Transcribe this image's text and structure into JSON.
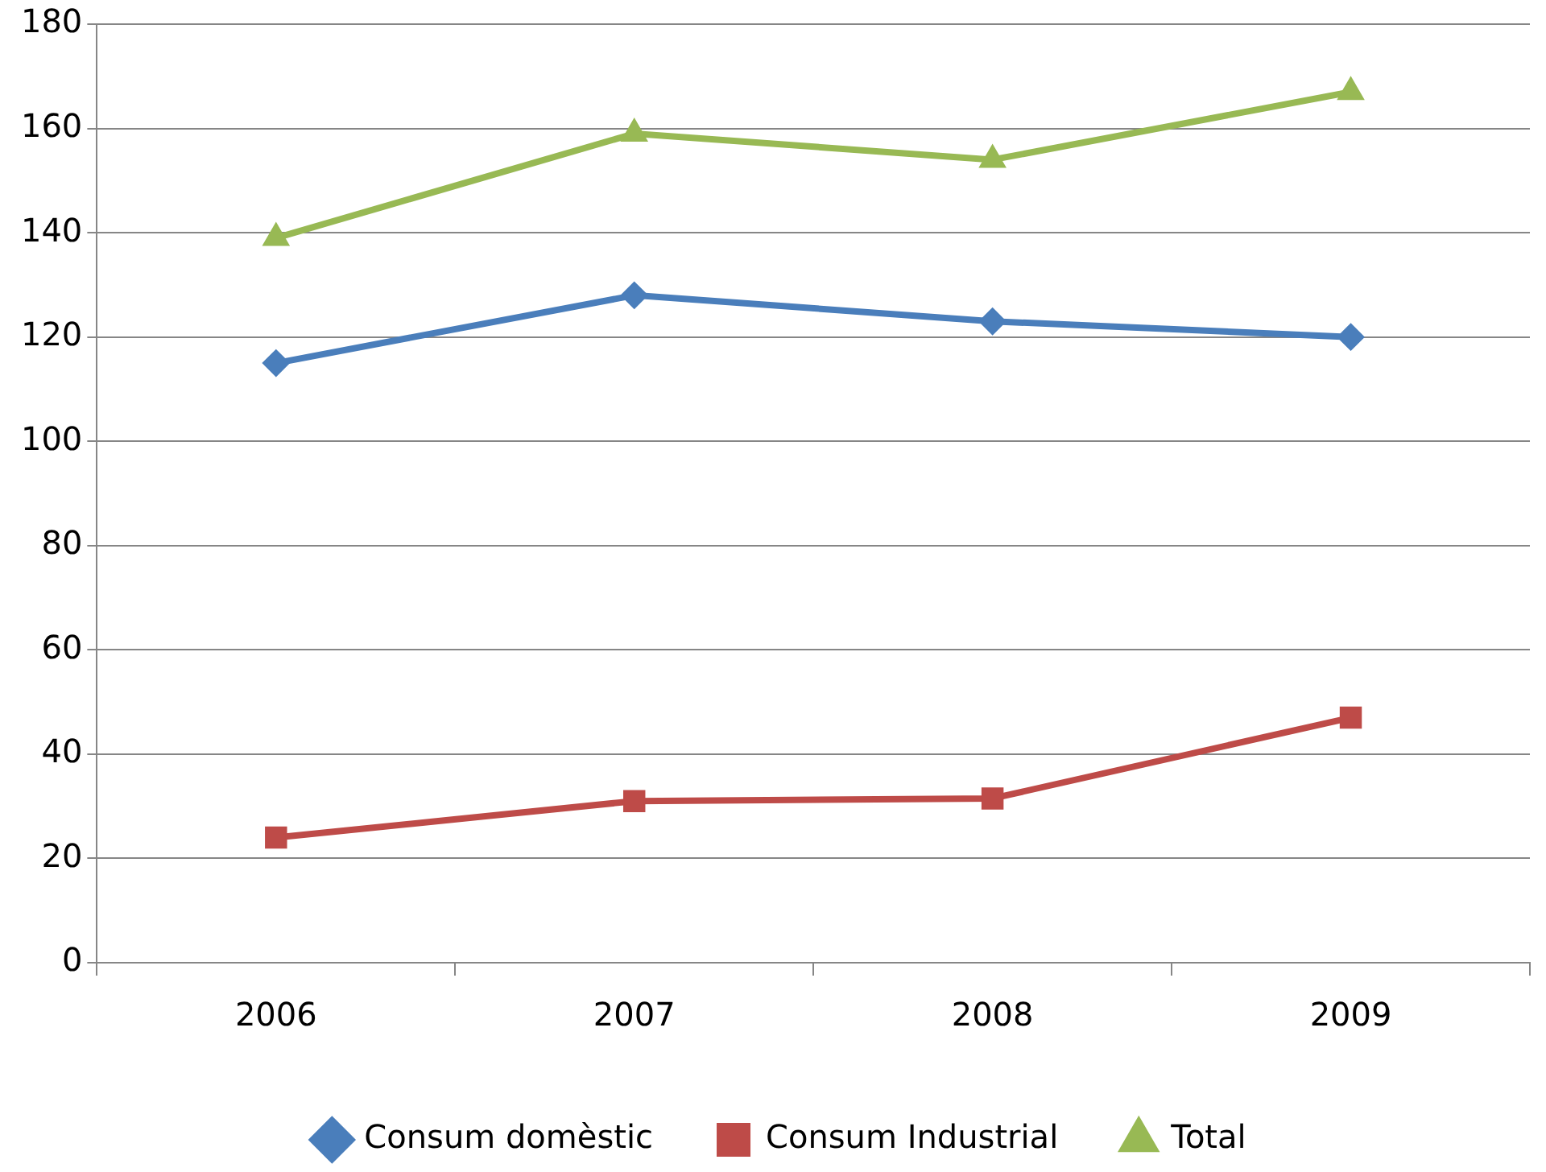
{
  "chart_data": {
    "type": "line",
    "categories": [
      "2006",
      "2007",
      "2008",
      "2009"
    ],
    "series": [
      {
        "name": "Consum domèstic",
        "color": "#4a7ebb",
        "marker": "diamond",
        "values": [
          115,
          128,
          123,
          120
        ]
      },
      {
        "name": "Consum Industrial",
        "color": "#be4b48",
        "marker": "square",
        "values": [
          24,
          31,
          31.5,
          47
        ]
      },
      {
        "name": "Total",
        "color": "#98b954",
        "marker": "triangle",
        "values": [
          139,
          159,
          154,
          167
        ]
      }
    ],
    "ylim": [
      0,
      180
    ],
    "yticks": [
      0,
      20,
      40,
      60,
      80,
      100,
      120,
      140,
      160,
      180
    ],
    "grid": "y",
    "legend": "bottom",
    "line_style": "solid"
  }
}
